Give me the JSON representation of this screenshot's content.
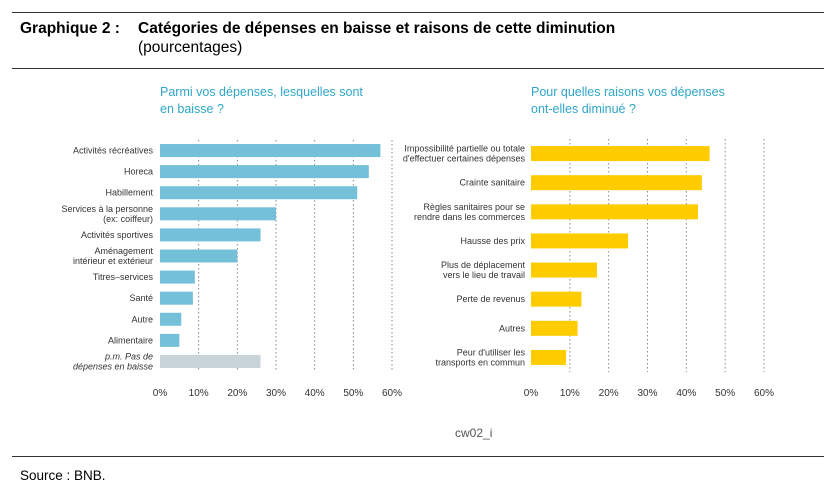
{
  "header": {
    "label": "Graphique 2 :",
    "title": "Catégories de dépenses en baisse et raisons de cette diminution",
    "subtitle": "(pourcentages)"
  },
  "credit": "cw02_i",
  "footer": {
    "source": "Source : BNB."
  },
  "colors": {
    "left_bar": "#74c0d8",
    "left_bar_pm": "#c9d4da",
    "right_bar": "#ffcc00",
    "title_blue": "#2fa6c8"
  },
  "chart_data": [
    {
      "type": "bar",
      "orientation": "horizontal",
      "title": "Parmi vos dépenses, lesquelles sont en baisse ?",
      "title_lines": [
        "Parmi vos dépenses, lesquelles sont",
        "en baisse ?"
      ],
      "categories": [
        [
          "Activités récréatives"
        ],
        [
          "Horeca"
        ],
        [
          "Habillement"
        ],
        [
          "Services à la personne",
          "(ex: coiffeur)"
        ],
        [
          "Activités sportives"
        ],
        [
          "Aménagement",
          "intérieur et extérieur"
        ],
        [
          "Titres–services"
        ],
        [
          "Santé"
        ],
        [
          "Autre"
        ],
        [
          "Alimentaire"
        ],
        [
          "p.m. Pas de",
          "dépenses en baisse"
        ]
      ],
      "values": [
        57,
        54,
        51,
        30,
        26,
        20,
        9,
        8.5,
        5.5,
        5,
        26
      ],
      "italic_last": true,
      "xlim": [
        0,
        60
      ],
      "ticks": [
        "0%",
        "10%",
        "20%",
        "30%",
        "40%",
        "50%",
        "60%"
      ],
      "grid": "vertical dotted"
    },
    {
      "type": "bar",
      "orientation": "horizontal",
      "title": "Pour quelles raisons vos dépenses ont-elles diminué ?",
      "title_lines": [
        "Pour quelles raisons vos dépenses",
        "ont-elles diminué ?"
      ],
      "categories": [
        [
          "Impossibilité partielle ou totale",
          "d'effectuer certaines dépenses"
        ],
        [
          "Crainte sanitaire"
        ],
        [
          "Règles sanitaires pour se",
          "rendre dans les commerces"
        ],
        [
          "Hausse des prix"
        ],
        [
          "Plus de déplacement",
          "vers le lieu de travail"
        ],
        [
          "Perte de revenus"
        ],
        [
          "Autres"
        ],
        [
          "Peur d'utiliser les",
          "transports en commun"
        ]
      ],
      "values": [
        46,
        44,
        43,
        25,
        17,
        13,
        12,
        9
      ],
      "xlim": [
        0,
        60
      ],
      "ticks": [
        "0%",
        "10%",
        "20%",
        "30%",
        "40%",
        "50%",
        "60%"
      ],
      "grid": "vertical dotted"
    }
  ]
}
